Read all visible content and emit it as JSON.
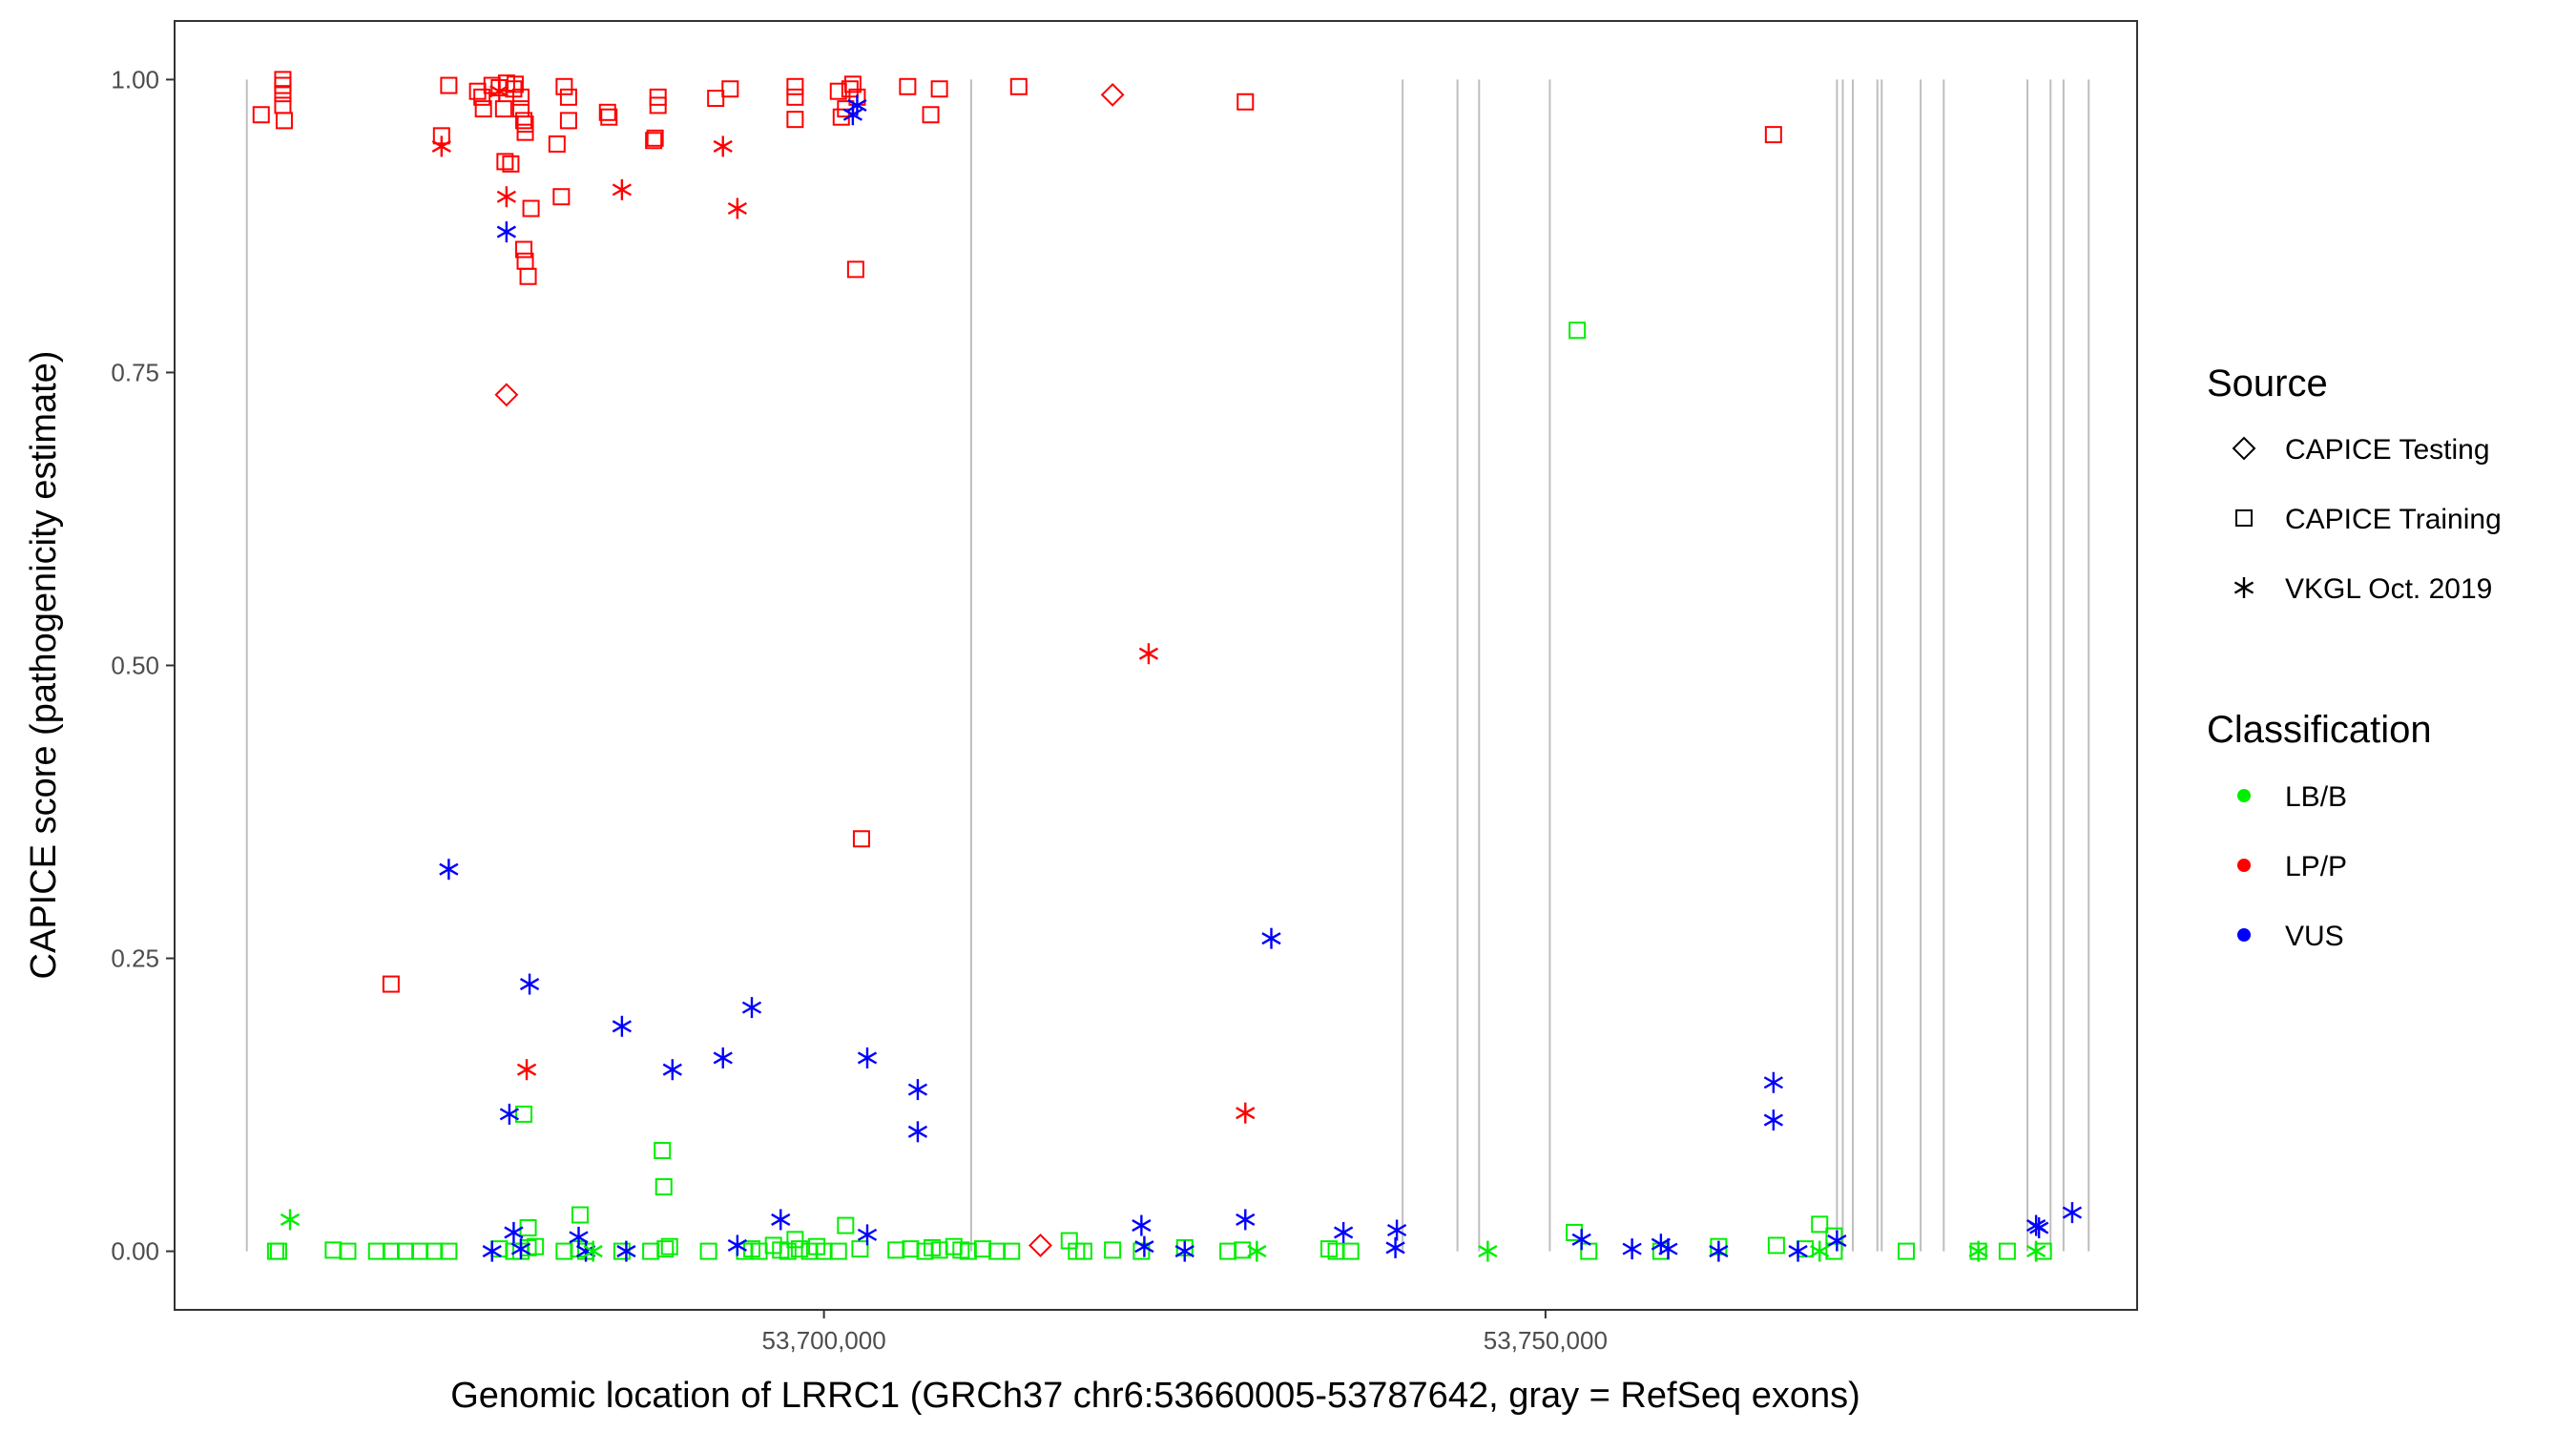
{
  "chart_data": {
    "type": "scatter",
    "xlabel": "Genomic location of LRRC1 (GRCh37 chr6:53660005-53787642, gray = RefSeq exons)",
    "ylabel": "CAPICE score (pathogenicity estimate)",
    "xlim": [
      53655000,
      53791000
    ],
    "ylim": [
      -0.05,
      1.05
    ],
    "x_ticks": [
      53700000,
      53750000
    ],
    "x_tick_labels": [
      "53,700,000",
      "53,750,000"
    ],
    "y_ticks": [
      0,
      0.25,
      0.5,
      0.75,
      1
    ],
    "y_tick_labels": [
      "0.00",
      "0.25",
      "0.50",
      "0.75",
      "1.00"
    ],
    "grid": false,
    "legend_position": "right",
    "exon_lines_color": "#bebebe",
    "exons": [
      53660005,
      53710200,
      53740100,
      53743900,
      53745400,
      53750300,
      53770200,
      53770600,
      53771300,
      53773000,
      53773300,
      53776000,
      53777600,
      53783400,
      53785000,
      53785900,
      53787642
    ],
    "legend": {
      "source_title": "Source",
      "source_items": [
        {
          "label": "CAPICE Testing",
          "shape": "diamond"
        },
        {
          "label": "CAPICE Training",
          "shape": "square"
        },
        {
          "label": "VKGL Oct. 2019",
          "shape": "asterisk"
        }
      ],
      "class_title": "Classification",
      "class_items": [
        {
          "label": "LB/B",
          "color": "#00ee00"
        },
        {
          "label": "LP/P",
          "color": "#ff0000"
        },
        {
          "label": "VUS",
          "color": "#0000ff"
        }
      ]
    },
    "series": [
      {
        "name": "CAPICE Training",
        "classification": "LP/P",
        "shape": "square",
        "color": "#ff0000",
        "points": [
          [
            53661000,
            0.97
          ],
          [
            53662500,
            1.0
          ],
          [
            53662500,
            0.995
          ],
          [
            53662500,
            0.988
          ],
          [
            53662500,
            0.978
          ],
          [
            53662600,
            0.965
          ],
          [
            53670000,
            0.228
          ],
          [
            53673500,
            0.952
          ],
          [
            53674000,
            0.995
          ],
          [
            53676000,
            0.99
          ],
          [
            53676300,
            0.985
          ],
          [
            53676400,
            0.975
          ],
          [
            53677000,
            0.995
          ],
          [
            53677500,
            0.993
          ],
          [
            53677800,
            0.975
          ],
          [
            53677900,
            0.93
          ],
          [
            53678000,
            0.997
          ],
          [
            53678300,
            0.928
          ],
          [
            53678500,
            0.992
          ],
          [
            53678600,
            0.996
          ],
          [
            53679000,
            0.985
          ],
          [
            53679000,
            0.975
          ],
          [
            53679200,
            0.965
          ],
          [
            53679300,
            0.962
          ],
          [
            53679300,
            0.955
          ],
          [
            53679200,
            0.855
          ],
          [
            53679300,
            0.845
          ],
          [
            53679500,
            0.832
          ],
          [
            53679700,
            0.89
          ],
          [
            53681500,
            0.945
          ],
          [
            53681800,
            0.9
          ],
          [
            53682000,
            0.994
          ],
          [
            53682300,
            0.985
          ],
          [
            53682300,
            0.965
          ],
          [
            53685000,
            0.972
          ],
          [
            53685100,
            0.968
          ],
          [
            53688500,
            0.985
          ],
          [
            53688500,
            0.978
          ],
          [
            53688300,
            0.95
          ],
          [
            53688200,
            0.948
          ],
          [
            53692500,
            0.984
          ],
          [
            53693500,
            0.992
          ],
          [
            53698000,
            0.994
          ],
          [
            53698000,
            0.985
          ],
          [
            53698000,
            0.966
          ],
          [
            53701000,
            0.99
          ],
          [
            53701200,
            0.968
          ],
          [
            53701500,
            0.975
          ],
          [
            53701800,
            0.992
          ],
          [
            53702000,
            0.996
          ],
          [
            53702300,
            0.985
          ],
          [
            53702200,
            0.838
          ],
          [
            53702600,
            0.352
          ],
          [
            53705800,
            0.994
          ],
          [
            53707400,
            0.97
          ],
          [
            53708000,
            0.992
          ],
          [
            53713500,
            0.994
          ],
          [
            53729200,
            0.981
          ],
          [
            53765800,
            0.953
          ]
        ]
      },
      {
        "name": "CAPICE Training",
        "classification": "LB/B",
        "shape": "square",
        "color": "#00ee00",
        "points": [
          [
            53662000,
            0.0
          ],
          [
            53662200,
            0.0
          ],
          [
            53666000,
            0.001
          ],
          [
            53667000,
            0.0
          ],
          [
            53669000,
            0.0
          ],
          [
            53670000,
            0.0
          ],
          [
            53671000,
            0.0
          ],
          [
            53672000,
            0.0
          ],
          [
            53673000,
            0.0
          ],
          [
            53674000,
            0.0
          ],
          [
            53677500,
            0.002
          ],
          [
            53678500,
            0.0
          ],
          [
            53679000,
            0.0
          ],
          [
            53679200,
            0.117
          ],
          [
            53679500,
            0.003
          ],
          [
            53679500,
            0.02
          ],
          [
            53680000,
            0.004
          ],
          [
            53682000,
            0.0
          ],
          [
            53683000,
            0.002
          ],
          [
            53683100,
            0.031
          ],
          [
            53683500,
            0.0
          ],
          [
            53686000,
            0.0
          ],
          [
            53688000,
            0.0
          ],
          [
            53688800,
            0.086
          ],
          [
            53688900,
            0.055
          ],
          [
            53689000,
            0.002
          ],
          [
            53689300,
            0.004
          ],
          [
            53692000,
            0.0
          ],
          [
            53694500,
            0.0
          ],
          [
            53695000,
            0.002
          ],
          [
            53695500,
            0.0
          ],
          [
            53696500,
            0.005
          ],
          [
            53697000,
            0.001
          ],
          [
            53697500,
            0.0
          ],
          [
            53698000,
            0.01
          ],
          [
            53698300,
            0.002
          ],
          [
            53699000,
            0.0
          ],
          [
            53699500,
            0.004
          ],
          [
            53700000,
            0.0
          ],
          [
            53701000,
            0.0
          ],
          [
            53701500,
            0.022
          ],
          [
            53702500,
            0.002
          ],
          [
            53705000,
            0.001
          ],
          [
            53706000,
            0.002
          ],
          [
            53707000,
            0.0
          ],
          [
            53707500,
            0.003
          ],
          [
            53708000,
            0.001
          ],
          [
            53709000,
            0.004
          ],
          [
            53709500,
            0.001
          ],
          [
            53710000,
            0.0
          ],
          [
            53711000,
            0.002
          ],
          [
            53712000,
            0.0
          ],
          [
            53713000,
            0.0
          ],
          [
            53717000,
            0.009
          ],
          [
            53717500,
            0.0
          ],
          [
            53718000,
            0.0
          ],
          [
            53720000,
            0.001
          ],
          [
            53722000,
            0.0
          ],
          [
            53725000,
            0.003
          ],
          [
            53728000,
            0.0
          ],
          [
            53729000,
            0.001
          ],
          [
            53735000,
            0.002
          ],
          [
            53735500,
            0.0
          ],
          [
            53736500,
            0.0
          ],
          [
            53752000,
            0.016
          ],
          [
            53752200,
            0.786
          ],
          [
            53753000,
            0.0
          ],
          [
            53758000,
            0.0
          ],
          [
            53762000,
            0.004
          ],
          [
            53766000,
            0.005
          ],
          [
            53768000,
            0.002
          ],
          [
            53769000,
            0.023
          ],
          [
            53770000,
            0.0
          ],
          [
            53770000,
            0.013
          ],
          [
            53775000,
            0.0
          ],
          [
            53780000,
            0.0
          ],
          [
            53782000,
            0.0
          ],
          [
            53784500,
            0.0
          ]
        ]
      },
      {
        "name": "VKGL Oct. 2019",
        "classification": "LP/P",
        "shape": "asterisk",
        "color": "#ff0000",
        "points": [
          [
            53673500,
            0.943
          ],
          [
            53677500,
            0.99
          ],
          [
            53678000,
            0.9
          ],
          [
            53679400,
            0.155
          ],
          [
            53686000,
            0.906
          ],
          [
            53693000,
            0.943
          ],
          [
            53694000,
            0.89
          ],
          [
            53722500,
            0.51
          ],
          [
            53729200,
            0.118
          ]
        ]
      },
      {
        "name": "VKGL Oct. 2019",
        "classification": "VUS",
        "shape": "asterisk",
        "color": "#0000ff",
        "points": [
          [
            53674000,
            0.326
          ],
          [
            53677000,
            0.0
          ],
          [
            53678000,
            0.87
          ],
          [
            53678200,
            0.117
          ],
          [
            53678500,
            0.016
          ],
          [
            53679000,
            0.002
          ],
          [
            53679600,
            0.228
          ],
          [
            53683000,
            0.012
          ],
          [
            53683500,
            0.0
          ],
          [
            53686000,
            0.192
          ],
          [
            53686300,
            0.0
          ],
          [
            53689500,
            0.155
          ],
          [
            53693000,
            0.165
          ],
          [
            53694000,
            0.005
          ],
          [
            53695000,
            0.208
          ],
          [
            53697000,
            0.027
          ],
          [
            53703000,
            0.165
          ],
          [
            53703000,
            0.014
          ],
          [
            53702000,
            0.97
          ],
          [
            53702300,
            0.978
          ],
          [
            53706500,
            0.138
          ],
          [
            53706500,
            0.102
          ],
          [
            53722000,
            0.022
          ],
          [
            53722200,
            0.004
          ],
          [
            53725000,
            0.0
          ],
          [
            53729200,
            0.027
          ],
          [
            53731000,
            0.267
          ],
          [
            53736000,
            0.016
          ],
          [
            53739700,
            0.018
          ],
          [
            53739600,
            0.003
          ],
          [
            53752500,
            0.01
          ],
          [
            53756000,
            0.002
          ],
          [
            53758000,
            0.006
          ],
          [
            53758500,
            0.002
          ],
          [
            53762000,
            0.0
          ],
          [
            53765800,
            0.144
          ],
          [
            53765800,
            0.112
          ],
          [
            53767500,
            0.0
          ],
          [
            53770200,
            0.009
          ],
          [
            53784000,
            0.022
          ],
          [
            53784200,
            0.02
          ],
          [
            53786500,
            0.033
          ]
        ]
      },
      {
        "name": "VKGL Oct. 2019",
        "classification": "LB/B",
        "shape": "asterisk",
        "color": "#00ee00",
        "points": [
          [
            53663000,
            0.027
          ],
          [
            53684000,
            0.0
          ],
          [
            53730000,
            0.0
          ],
          [
            53746000,
            0.0
          ],
          [
            53769000,
            0.0
          ],
          [
            53780000,
            0.0
          ],
          [
            53784000,
            0.0
          ]
        ]
      },
      {
        "name": "CAPICE Testing",
        "classification": "LP/P",
        "shape": "diamond",
        "color": "#ff0000",
        "points": [
          [
            53678000,
            0.731
          ],
          [
            53715000,
            0.005
          ],
          [
            53720000,
            0.987
          ]
        ]
      }
    ]
  }
}
